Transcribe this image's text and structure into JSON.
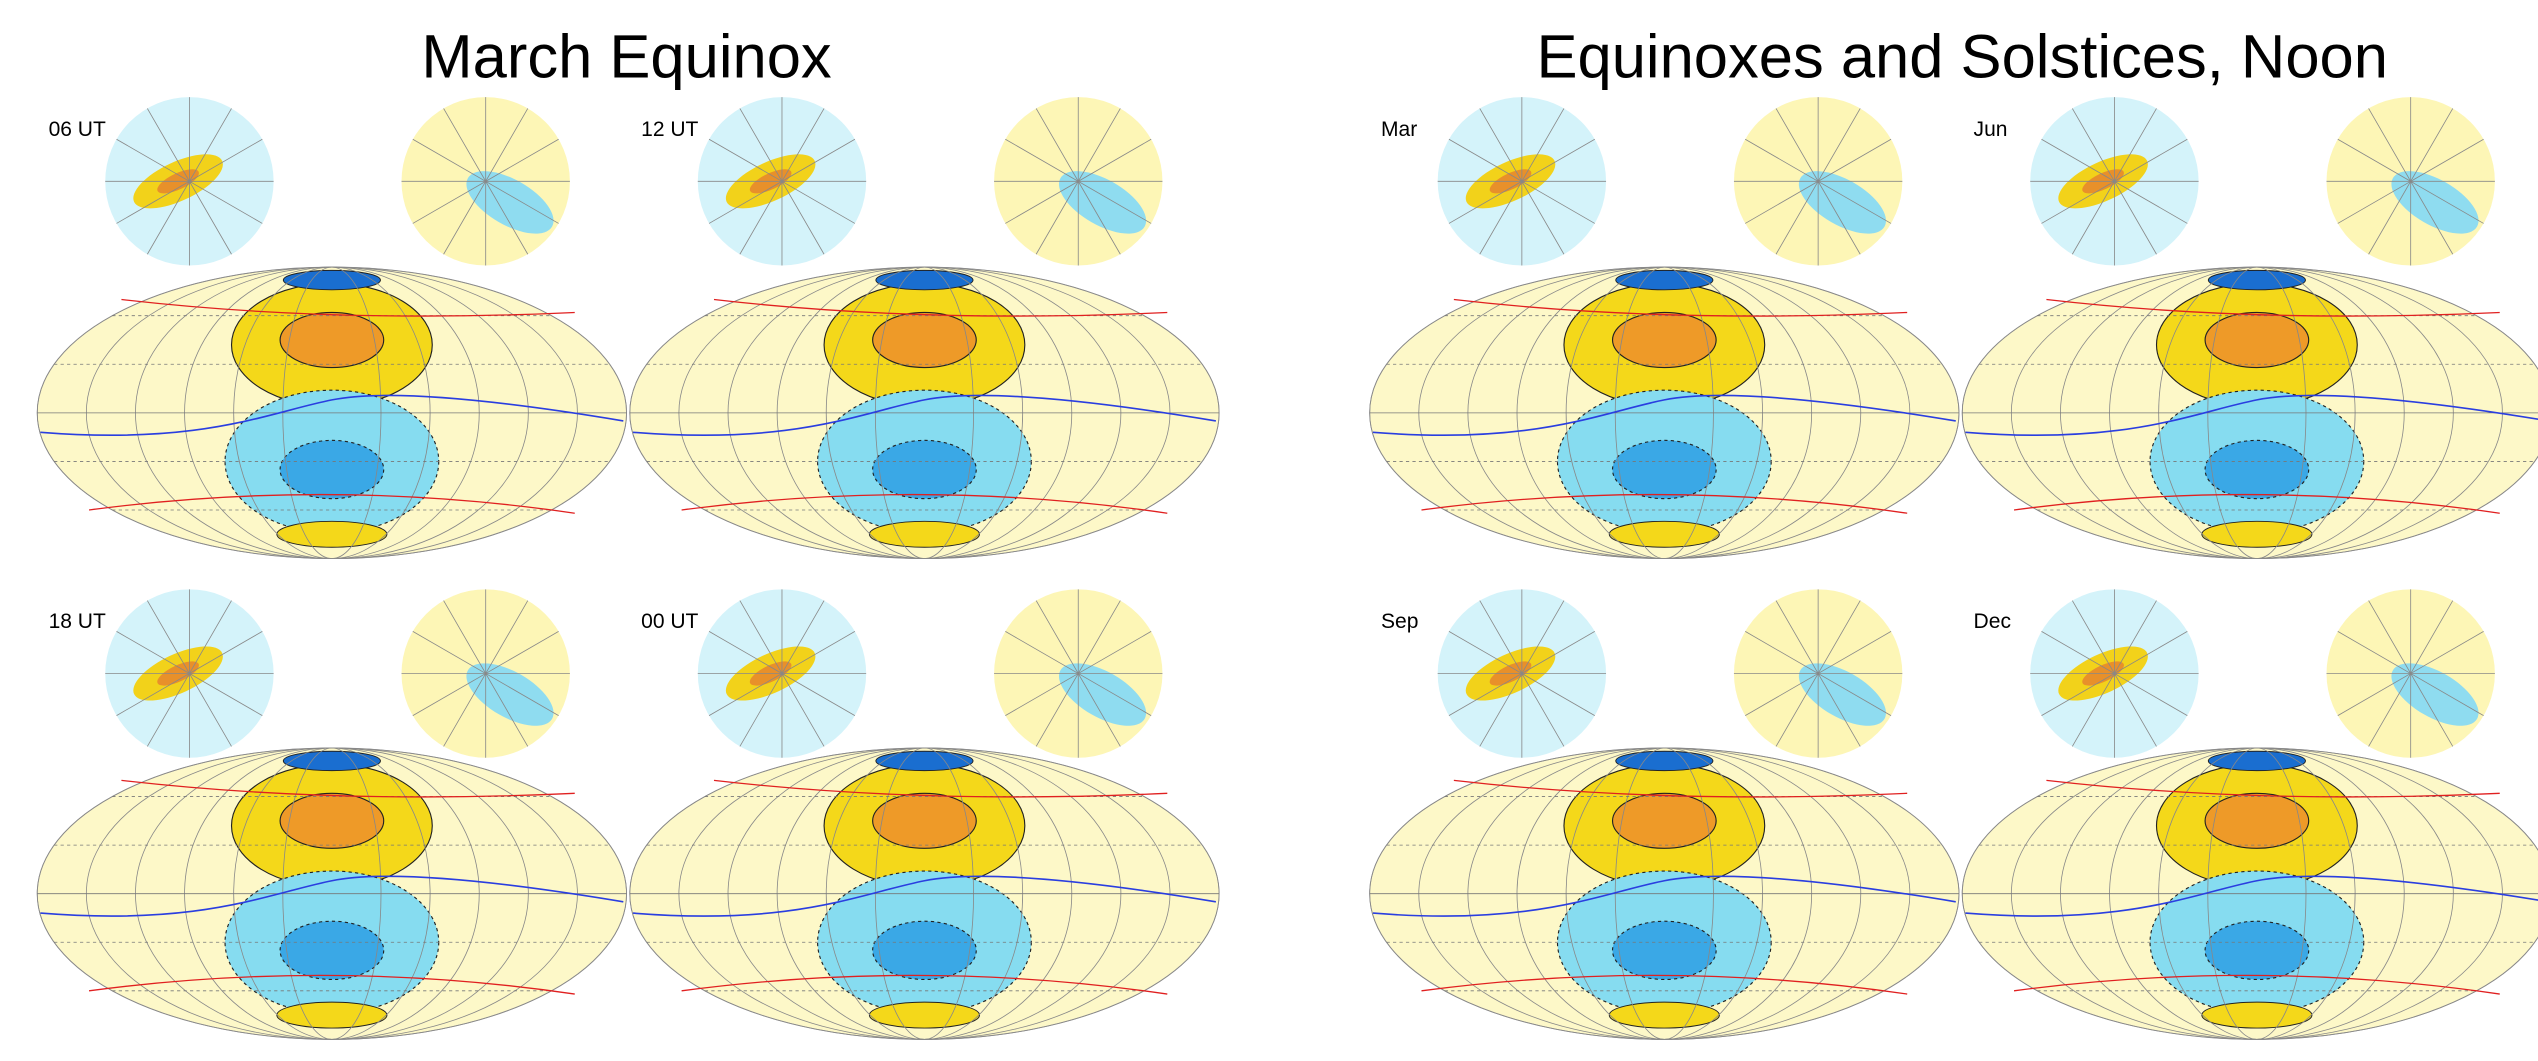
{
  "groups": [
    {
      "title": "March Equinox",
      "panels": [
        {
          "label": "06 UT"
        },
        {
          "label": "12 UT"
        },
        {
          "label": "18 UT"
        },
        {
          "label": "00 UT"
        }
      ]
    },
    {
      "title": "Equinoxes and Solstices, Noon",
      "panels": [
        {
          "label": "Mar"
        },
        {
          "label": "Jun"
        },
        {
          "label": "Sep"
        },
        {
          "label": "Dec"
        }
      ]
    }
  ]
}
